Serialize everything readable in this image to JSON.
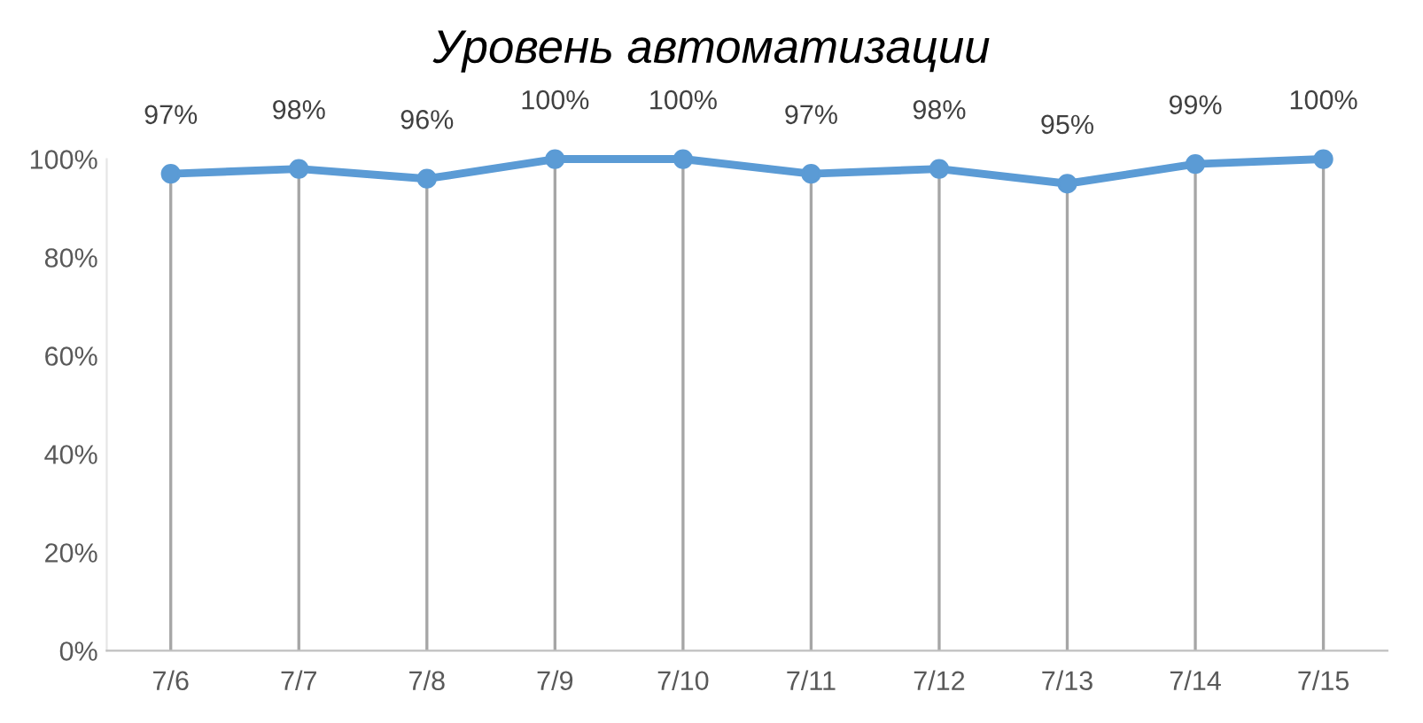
{
  "chart_data": {
    "type": "line",
    "title": "Уровень автоматизации",
    "categories": [
      "7/6",
      "7/7",
      "7/8",
      "7/9",
      "7/10",
      "7/11",
      "7/12",
      "7/13",
      "7/14",
      "7/15"
    ],
    "series": [
      {
        "color": "#5b9bd5",
        "values": [
          97,
          98,
          96,
          100,
          100,
          97,
          98,
          95,
          99,
          100
        ],
        "value_labels": [
          "97%",
          "98%",
          "96%",
          "100%",
          "100%",
          "97%",
          "98%",
          "95%",
          "99%",
          "100%"
        ]
      }
    ],
    "ylim": [
      0,
      100
    ],
    "yticks": [
      {
        "value": 0,
        "label": "0%"
      },
      {
        "value": 20,
        "label": "20%"
      },
      {
        "value": 40,
        "label": "40%"
      },
      {
        "value": 60,
        "label": "60%"
      },
      {
        "value": 80,
        "label": "80%"
      },
      {
        "value": 100,
        "label": "100%"
      }
    ],
    "grid": "x",
    "legend": false,
    "marker": "circle",
    "line_style": "solid"
  }
}
